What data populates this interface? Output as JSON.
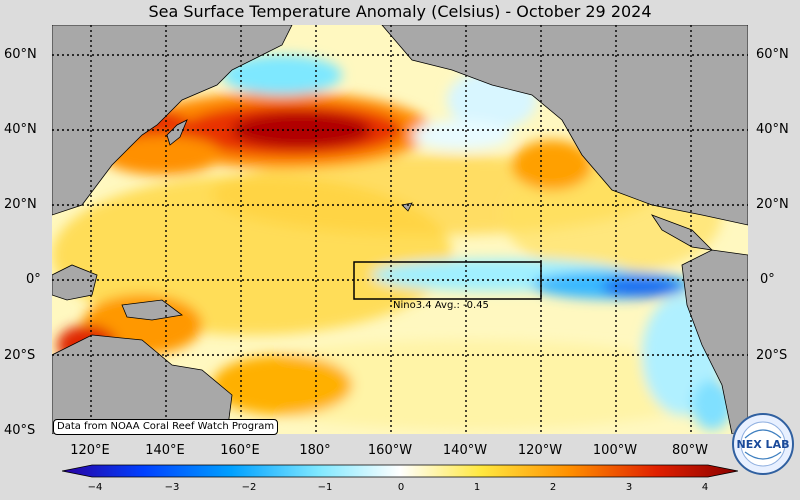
{
  "title": "Sea Surface Temperature Anomaly (Celsius) - October 29 2024",
  "latitude_labels": [
    "60°N",
    "40°N",
    "20°N",
    "0°",
    "20°S",
    "40°S"
  ],
  "longitude_labels": [
    "120°E",
    "140°E",
    "160°E",
    "180°",
    "160°W",
    "140°W",
    "120°W",
    "100°W",
    "80°W"
  ],
  "nino_box": {
    "label": "Nino3.4 Avg.: -0.45",
    "value": -0.45
  },
  "credit": "Data from NOAA Coral Reef Watch Program",
  "colorbar": {
    "ticks": [
      "−4",
      "−3",
      "−2",
      "−1",
      "0",
      "1",
      "2",
      "3",
      "4"
    ],
    "min": -4,
    "max": 4
  },
  "logo_text": "NEX LAB",
  "colors": {
    "land": "#a8a8a8",
    "background": "#dcdcdc",
    "cold_max": "#2a00a0",
    "warm_max": "#8a0000"
  }
}
